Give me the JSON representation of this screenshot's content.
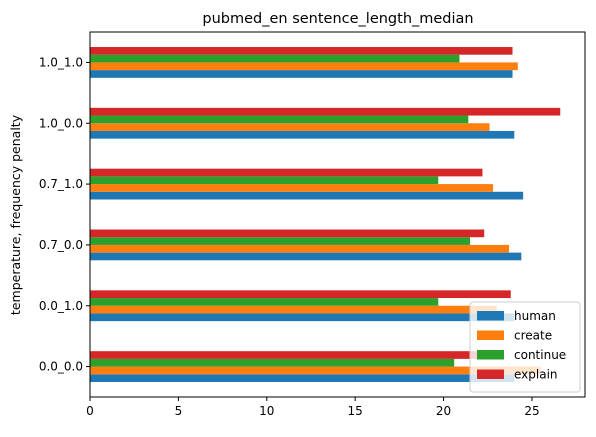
{
  "chart_data": {
    "type": "bar",
    "orientation": "horizontal",
    "title": "pubmed_en sentence_length_median",
    "xlabel": "",
    "ylabel": "temperature, frequency penalty",
    "categories": [
      "0.0_0.0",
      "0.0_1.0",
      "0.7_0.0",
      "0.7_1.0",
      "1.0_0.0",
      "1.0_1.0"
    ],
    "series": [
      {
        "name": "human",
        "color": "#1f77b4",
        "values": [
          24.0,
          24.0,
          24.4,
          24.5,
          24.0,
          23.9
        ]
      },
      {
        "name": "create",
        "color": "#ff7f0e",
        "values": [
          25.5,
          23.0,
          23.7,
          22.8,
          22.6,
          24.2
        ]
      },
      {
        "name": "continue",
        "color": "#2ca02c",
        "values": [
          20.6,
          19.7,
          21.5,
          19.7,
          21.4,
          20.9
        ]
      },
      {
        "name": "explain",
        "color": "#d62728",
        "values": [
          23.0,
          23.8,
          22.3,
          22.2,
          26.6,
          23.9
        ]
      }
    ],
    "xlim": [
      0,
      28
    ],
    "xticks": [
      0,
      5,
      10,
      15,
      20,
      25
    ],
    "grid": false,
    "legend_position": "lower-right"
  }
}
